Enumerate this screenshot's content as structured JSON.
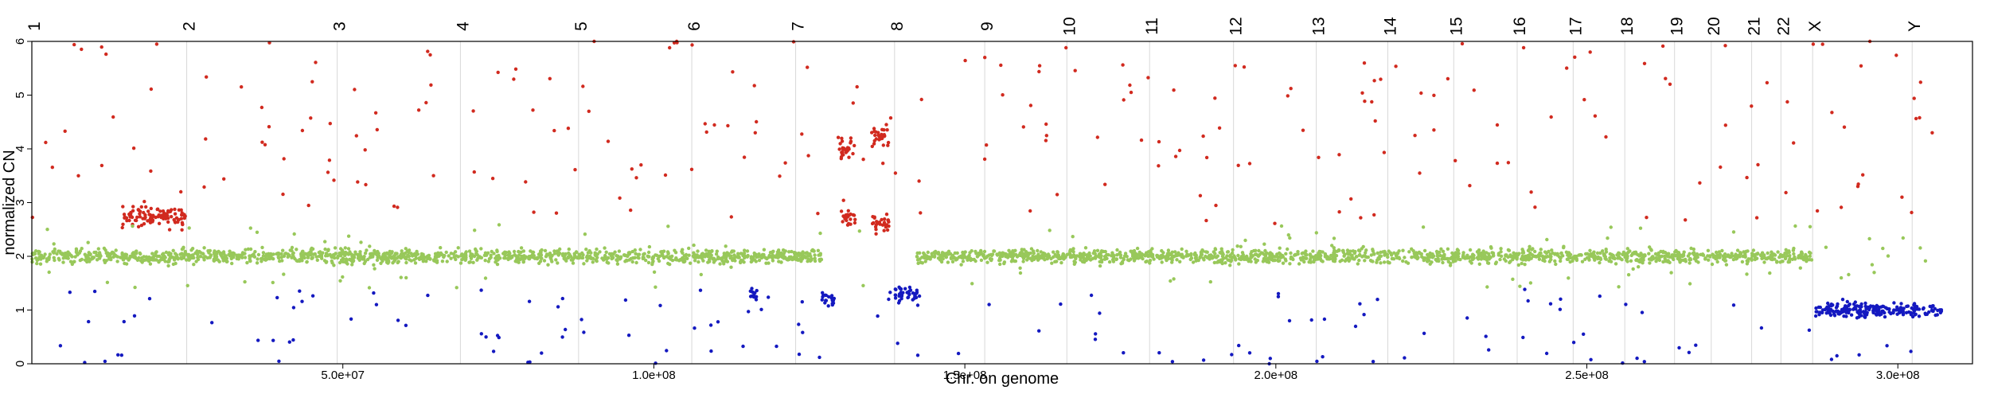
{
  "chart_data": {
    "type": "scatter",
    "title": "",
    "xlabel": "Chr. on genome",
    "ylabel": "normalized CN",
    "xlim": [
      0,
      312000000
    ],
    "ylim": [
      0,
      6
    ],
    "x_ticks": [
      50000000,
      100000000,
      150000000,
      200000000,
      250000000,
      300000000
    ],
    "x_tick_labels": [
      "5.0e+07",
      "1.0e+08",
      "1.5e+08",
      "2.0e+08",
      "2.5e+08",
      "3.0e+08"
    ],
    "y_ticks": [
      0,
      1,
      2,
      3,
      4,
      5,
      6
    ],
    "y_tick_labels": [
      "0",
      "1",
      "2",
      "3",
      "4",
      "5",
      "6"
    ],
    "grid": "vertical lines at chromosome boundaries",
    "legend": "none",
    "colors": {
      "gain": "#d12a1f",
      "neutral": "#98c85a",
      "loss": "#1419c0"
    },
    "chromosomes": [
      {
        "label": "1",
        "pos": 0
      },
      {
        "label": "2",
        "pos": 24900000
      },
      {
        "label": "3",
        "pos": 49100000
      },
      {
        "label": "4",
        "pos": 68900000
      },
      {
        "label": "5",
        "pos": 87900000
      },
      {
        "label": "6",
        "pos": 106100000
      },
      {
        "label": "7",
        "pos": 122800000
      },
      {
        "label": "8",
        "pos": 138700000
      },
      {
        "label": "9",
        "pos": 153200000
      },
      {
        "label": "10",
        "pos": 166400000
      },
      {
        "label": "11",
        "pos": 179700000
      },
      {
        "label": "12",
        "pos": 193200000
      },
      {
        "label": "13",
        "pos": 206500000
      },
      {
        "label": "14",
        "pos": 218000000
      },
      {
        "label": "15",
        "pos": 228600000
      },
      {
        "label": "16",
        "pos": 238800000
      },
      {
        "label": "17",
        "pos": 247800000
      },
      {
        "label": "18",
        "pos": 256100000
      },
      {
        "label": "19",
        "pos": 264100000
      },
      {
        "label": "20",
        "pos": 270000000
      },
      {
        "label": "21",
        "pos": 276500000
      },
      {
        "label": "22",
        "pos": 281200000
      },
      {
        "label": "X",
        "pos": 286300000
      },
      {
        "label": "Y",
        "pos": 302300000
      }
    ],
    "segments": [
      {
        "start": 0,
        "end": 24900000,
        "cn": 2.0,
        "class": "neutral"
      },
      {
        "start": 14500000,
        "end": 24700000,
        "cn": 2.75,
        "class": "gain"
      },
      {
        "start": 24900000,
        "end": 127000000,
        "cn": 2.0,
        "class": "neutral"
      },
      {
        "start": 115500000,
        "end": 116700000,
        "cn": 1.3,
        "class": "loss"
      },
      {
        "start": 127000000,
        "end": 129000000,
        "cn": 1.2,
        "class": "loss"
      },
      {
        "start": 129800000,
        "end": 132500000,
        "cn": 4.0,
        "class": "gain"
      },
      {
        "start": 130000000,
        "end": 132500000,
        "cn": 2.7,
        "class": "gain"
      },
      {
        "start": 135000000,
        "end": 137800000,
        "cn": 4.2,
        "class": "gain"
      },
      {
        "start": 135000000,
        "end": 137800000,
        "cn": 2.6,
        "class": "gain"
      },
      {
        "start": 138700000,
        "end": 142300000,
        "cn": 1.3,
        "class": "loss"
      },
      {
        "start": 142300000,
        "end": 286300000,
        "cn": 2.0,
        "class": "neutral"
      },
      {
        "start": 286500000,
        "end": 307000000,
        "cn": 1.0,
        "class": "loss"
      }
    ]
  }
}
